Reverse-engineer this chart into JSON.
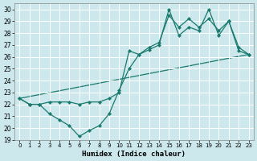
{
  "title": "",
  "xlabel": "Humidex (Indice chaleur)",
  "xlim": [
    -0.5,
    23.5
  ],
  "ylim": [
    19,
    30.5
  ],
  "yticks": [
    19,
    20,
    21,
    22,
    23,
    24,
    25,
    26,
    27,
    28,
    29,
    30
  ],
  "xticks": [
    0,
    1,
    2,
    3,
    4,
    5,
    6,
    7,
    8,
    9,
    10,
    11,
    12,
    13,
    14,
    15,
    16,
    17,
    18,
    19,
    20,
    21,
    22,
    23
  ],
  "bg_color": "#cce8ec",
  "grid_color": "#b0d4d8",
  "line_color": "#1a7a6e",
  "line1_x": [
    0,
    1,
    2,
    3,
    4,
    5,
    6,
    7,
    8,
    9,
    10,
    11,
    12,
    13,
    14,
    15,
    16,
    17,
    18,
    19,
    20,
    21,
    22,
    23
  ],
  "line1_y": [
    22.5,
    22.0,
    22.0,
    21.2,
    20.7,
    20.2,
    19.3,
    19.8,
    20.2,
    21.2,
    23.2,
    25.0,
    26.2,
    26.6,
    27.0,
    30.0,
    27.8,
    28.5,
    28.2,
    30.0,
    27.8,
    29.0,
    26.5,
    26.2
  ],
  "line2_x": [
    0,
    1,
    2,
    3,
    4,
    5,
    6,
    7,
    8,
    9,
    10,
    11,
    12,
    13,
    14,
    15,
    16,
    17,
    18,
    19,
    20,
    21,
    22,
    23
  ],
  "line2_y": [
    22.5,
    22.0,
    22.0,
    22.2,
    22.2,
    22.2,
    22.0,
    22.2,
    22.2,
    22.5,
    23.0,
    26.5,
    26.2,
    26.8,
    27.2,
    29.5,
    28.5,
    29.2,
    28.5,
    29.2,
    28.2,
    29.0,
    26.8,
    26.2
  ],
  "line3_x": [
    0,
    23
  ],
  "line3_y": [
    22.5,
    26.2
  ]
}
